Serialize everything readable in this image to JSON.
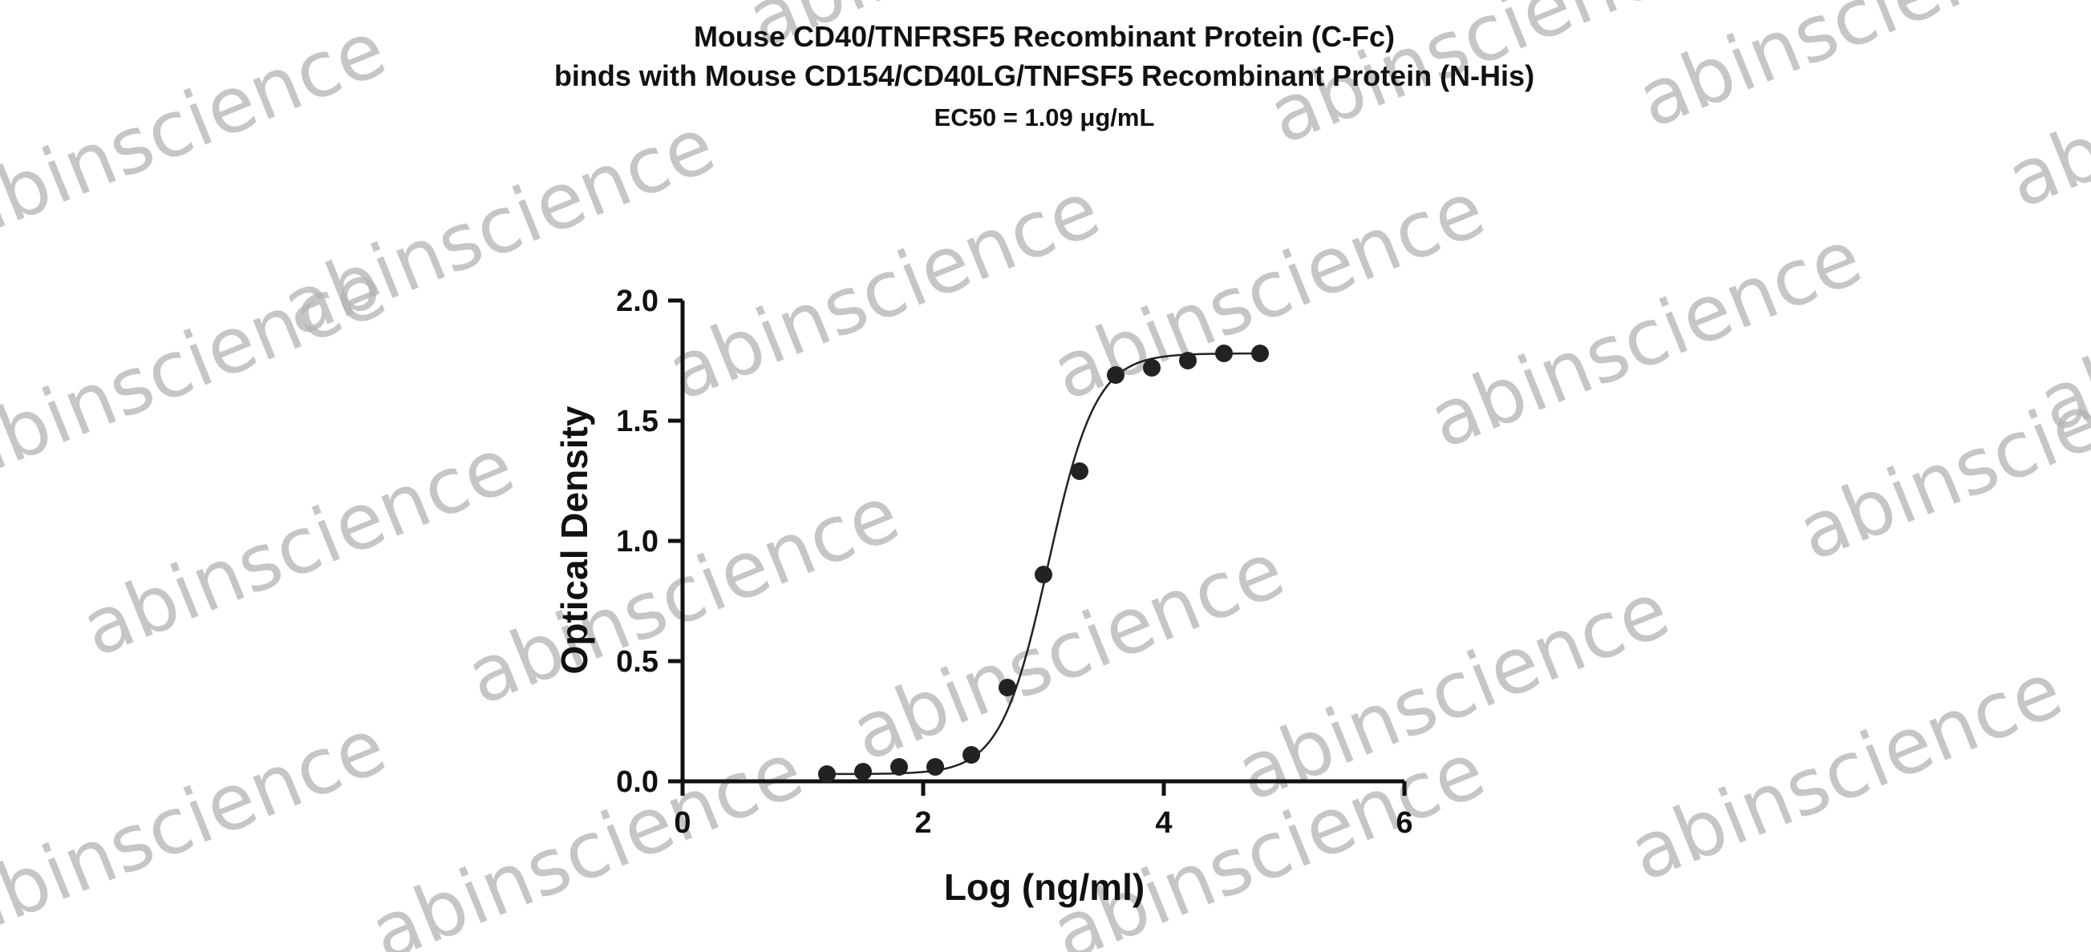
{
  "chart_data": {
    "type": "scatter",
    "title_lines": [
      "Mouse CD40/TNFRSF5 Recombinant Protein (C-Fc)",
      "binds with Mouse CD154/CD40LG/TNFSF5 Recombinant Protein (N-His)",
      "EC50 = 1.09 μg/mL"
    ],
    "xlabel": "Log (ng/ml)",
    "ylabel": "Optical Density",
    "xlim": [
      0,
      6
    ],
    "ylim": [
      0,
      2.0
    ],
    "x_ticks": [
      "0",
      "2",
      "4",
      "6"
    ],
    "y_ticks": [
      "0.0",
      "0.5",
      "1.0",
      "1.5",
      "2.0"
    ],
    "grid": false,
    "series": [
      {
        "x": [
          1.2,
          1.5,
          1.8,
          2.1,
          2.4,
          2.7,
          3.0,
          3.3,
          3.6,
          3.9,
          4.2,
          4.5,
          4.8
        ],
        "y": [
          0.03,
          0.04,
          0.06,
          0.06,
          0.11,
          0.39,
          0.86,
          1.29,
          1.69,
          1.72,
          1.75,
          1.78,
          1.78
        ]
      }
    ],
    "fit_curve": {
      "model": "4PL",
      "bottom": 0.03,
      "top": 1.78,
      "log_ec50": 3.04,
      "hill_slope": 2.2,
      "x_range": [
        1.2,
        4.8
      ]
    },
    "colors": {
      "points": "#222222",
      "curve": "#222222",
      "axes": "#111111",
      "watermark": "#b3b3b3"
    }
  },
  "watermark": {
    "text": "abinscience"
  }
}
